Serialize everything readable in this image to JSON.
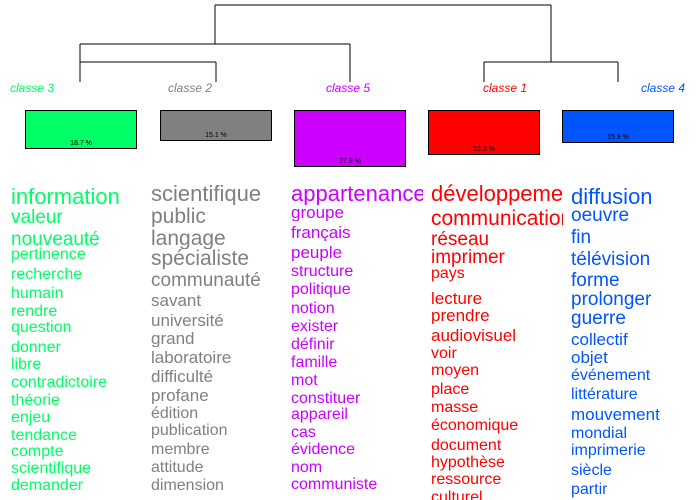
{
  "classes": [
    {
      "id": "c3",
      "label": "classe 3",
      "percent": "18.7 %",
      "color": "#00ff66",
      "size_value": 18.7,
      "words": [
        "information",
        "valeur",
        "nouveauté",
        "pertinence",
        "recherche",
        "humain",
        "rendre",
        "question",
        "donner",
        "libre",
        "contradictoire",
        "théorie",
        "enjeu",
        "tendance",
        "compte",
        "scientifique",
        "demander"
      ]
    },
    {
      "id": "c2",
      "label": "classe 2",
      "percent": "15.1 %",
      "color": "#808080",
      "size_value": 15.1,
      "words": [
        "scientifique",
        "public",
        "langage",
        "spécialiste",
        "communauté",
        "savant",
        "université",
        "grand",
        "laboratoire",
        "difficulté",
        "profane",
        "édition",
        "publication",
        "membre",
        "attitude",
        "dimension"
      ]
    },
    {
      "id": "c5",
      "label": "classe 5",
      "percent": "27.9 %",
      "color": "#cc00ff",
      "size_value": 27.9,
      "words": [
        "appartenance",
        "groupe",
        "français",
        "peuple",
        "structure",
        "politique",
        "notion",
        "exister",
        "définir",
        "famille",
        "mot",
        "constituer",
        "appareil",
        "cas",
        "évidence",
        "nom",
        "communiste"
      ]
    },
    {
      "id": "c1",
      "label": "classe 1",
      "percent": "22.3 %",
      "color": "#ff0000",
      "size_value": 22.3,
      "words": [
        "développement",
        "communication",
        "réseau",
        "imprimer",
        "pays",
        "lecture",
        "prendre",
        "audiovisuel",
        "voir",
        "moyen",
        "place",
        "masse",
        "économique",
        "document",
        "hypothèse",
        "ressource",
        "culturel"
      ]
    },
    {
      "id": "c4",
      "label": "classe 4",
      "percent": "15.9 %",
      "color": "#0055ff",
      "size_value": 15.9,
      "words": [
        "diffusion",
        "oeuvre",
        "fin",
        "télévision",
        "forme",
        "prolonger",
        "guerre",
        "collectif",
        "objet",
        "événement",
        "littérature",
        "mouvement",
        "mondial",
        "imprimerie",
        "siècle",
        "partir"
      ]
    }
  ]
}
